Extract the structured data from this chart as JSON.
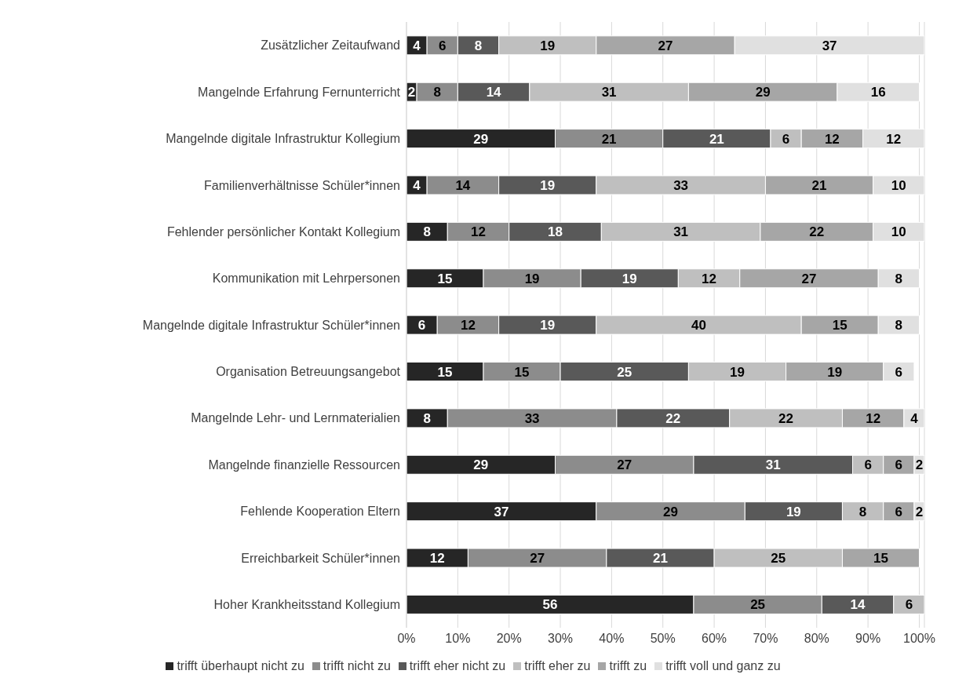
{
  "chart_data": {
    "type": "bar",
    "orientation": "horizontal",
    "stacked": true,
    "data_labels": true,
    "grid": "x",
    "legend": "bottom",
    "categories": [
      "Zusätzlicher Zeitaufwand",
      "Mangelnde Erfahrung Fernunterricht",
      "Mangelnde digitale Infrastruktur Kollegium",
      "Familienverhältnisse Schüler*innen",
      "Fehlender persönlicher Kontakt Kollegium",
      "Kommunikation mit Lehrpersonen",
      "Mangelnde digitale Infrastruktur Schüler*innen",
      "Organisation Betreuungsangebot",
      "Mangelnde Lehr- und Lernmaterialien",
      "Mangelnde finanzielle Ressourcen",
      "Fehlende Kooperation Eltern",
      "Erreichbarkeit Schüler*innen",
      "Hoher Krankheitsstand Kollegium"
    ],
    "xlim": [
      0,
      101
    ],
    "xticks": [
      {
        "value": 0,
        "label": "0%"
      },
      {
        "value": 10,
        "label": "10%"
      },
      {
        "value": 20,
        "label": "20%"
      },
      {
        "value": 30,
        "label": "30%"
      },
      {
        "value": 40,
        "label": "40%"
      },
      {
        "value": 50,
        "label": "50%"
      },
      {
        "value": 60,
        "label": "60%"
      },
      {
        "value": 70,
        "label": "70%"
      },
      {
        "value": 80,
        "label": "80%"
      },
      {
        "value": 90,
        "label": "90%"
      },
      {
        "value": 100,
        "label": "100%"
      }
    ],
    "series": [
      {
        "name": "trifft überhaupt nicht zu",
        "color": "#262626",
        "values": [
          4,
          2,
          29,
          4,
          8,
          15,
          6,
          15,
          8,
          29,
          37,
          12,
          56
        ]
      },
      {
        "name": "trifft nicht zu",
        "color": "#8c8c8c",
        "values": [
          6,
          8,
          21,
          14,
          12,
          19,
          12,
          15,
          33,
          27,
          29,
          27,
          25
        ]
      },
      {
        "name": "trifft eher nicht zu",
        "color": "#595959",
        "values": [
          8,
          14,
          21,
          19,
          18,
          19,
          19,
          25,
          22,
          31,
          19,
          21,
          14
        ]
      },
      {
        "name": "trifft eher zu",
        "color": "#bfbfbf",
        "values": [
          19,
          31,
          6,
          33,
          31,
          12,
          40,
          19,
          22,
          6,
          8,
          25,
          6
        ]
      },
      {
        "name": "trifft zu",
        "color": "#a6a6a6",
        "values": [
          27,
          29,
          12,
          21,
          22,
          27,
          15,
          19,
          12,
          6,
          6,
          15,
          null
        ]
      },
      {
        "name": "trifft voll und ganz zu",
        "color": "#e0e0e0",
        "values": [
          37,
          16,
          12,
          10,
          10,
          8,
          8,
          6,
          4,
          2,
          2,
          null,
          null
        ]
      }
    ]
  }
}
